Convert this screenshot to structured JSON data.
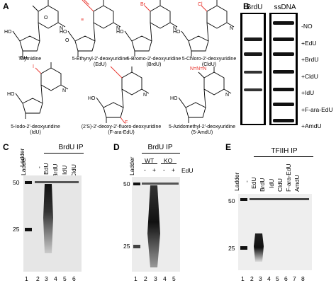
{
  "panels": {
    "A": "A",
    "B": "B",
    "C": "C",
    "D": "D",
    "E": "E"
  },
  "structures": {
    "row1": [
      "Thymidine",
      "5-Ethynyl-2'-deoxyuridine",
      "(EdU)",
      "5-Bromo-2'-deoxyuridine",
      "(BrdU)",
      "5-Chloro-2'-deoxyuridine",
      "(CldU)"
    ],
    "row2": [
      "5-Iodo-2'-deoxyuridine",
      "(IdU)",
      "(2'S)-2'-deoxy-2'-fluoro-deoxyuridine",
      "(F-ara-EdU)",
      "5-Azidomethyl-2'-deoxyuridine",
      "(5-AmdU)"
    ],
    "atoms": {
      "O": "O",
      "N": "N",
      "H": "H",
      "OH": "OH",
      "HO": "HO",
      "Br": "Br",
      "Cl": "Cl",
      "I": "I",
      "F": "F",
      "N3": "N=N=N"
    }
  },
  "panel_b": {
    "col1": "BrdU",
    "col2": "ssDNA",
    "rows": [
      "-NO",
      "+EdU",
      "+BrdU",
      "+CldU",
      "+IdU",
      "+F-ara-EdU",
      "+AmdU"
    ]
  },
  "panel_c": {
    "title": "BrdU IP",
    "lanes": [
      "Ladder",
      "-",
      "EdU",
      "BrdU",
      "IdU",
      "CldU"
    ],
    "mw": [
      "50",
      "25"
    ],
    "numbers": [
      "1",
      "2",
      "3",
      "4",
      "5",
      "6"
    ]
  },
  "panel_d": {
    "title": "BrdU IP",
    "ladder": "Ladder",
    "groups": [
      "WT",
      "KO"
    ],
    "signs": [
      "-",
      "+",
      "-",
      "+"
    ],
    "edu": "EdU",
    "mw": [
      "50",
      "25"
    ],
    "numbers": [
      "1",
      "2",
      "3",
      "4",
      "5"
    ]
  },
  "panel_e": {
    "title": "TFIIH IP",
    "lanes": [
      "Ladder",
      "-",
      "EdU",
      "BrdU",
      "IdU",
      "CldU",
      "F-ara-EdU",
      "AmdU"
    ],
    "mw": [
      "50",
      "25"
    ],
    "numbers": [
      "1",
      "2",
      "3",
      "4",
      "5",
      "6",
      "7",
      "8"
    ]
  },
  "colors": {
    "highlight": "#e8312a",
    "ink": "#000000"
  }
}
